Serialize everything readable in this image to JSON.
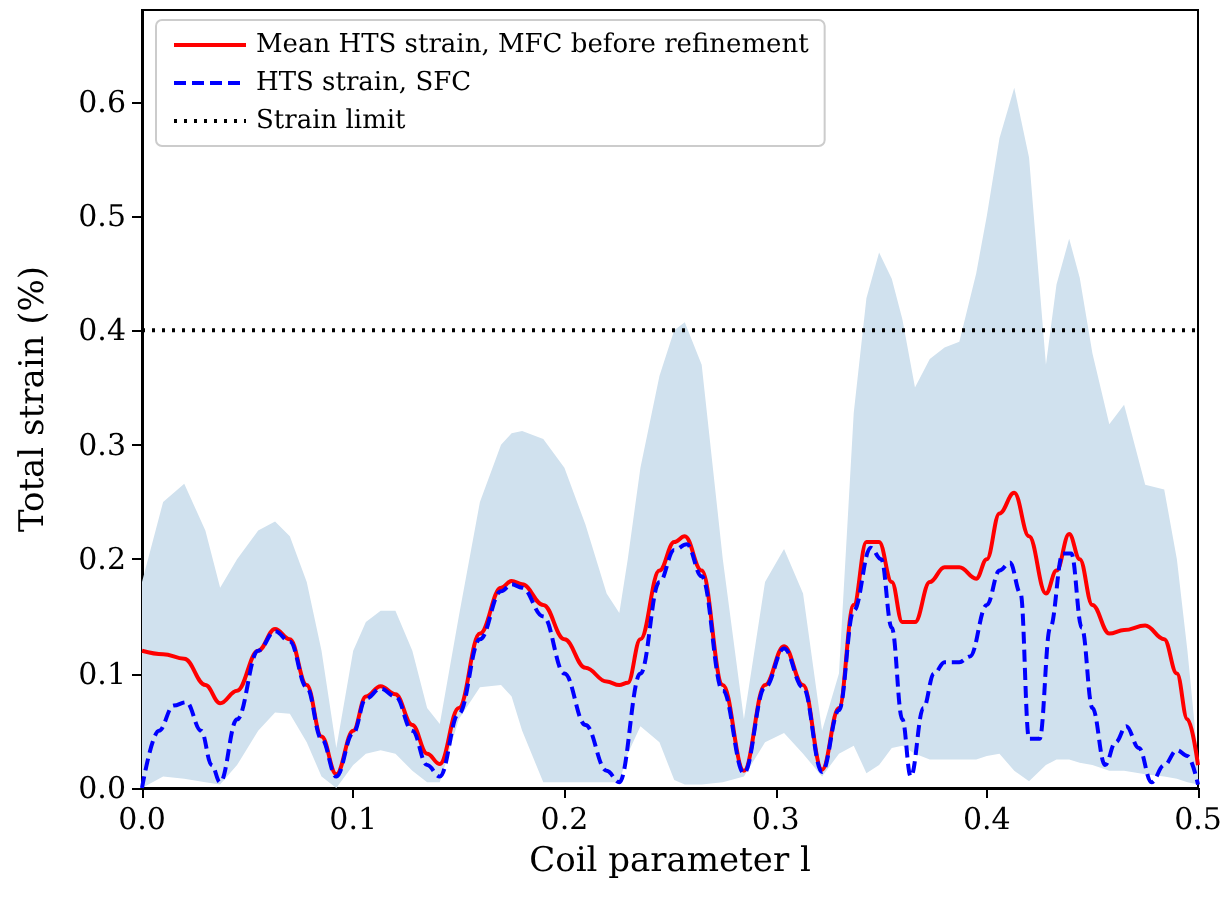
{
  "chart_data": {
    "type": "line",
    "xlabel": "Coil parameter l",
    "ylabel": "Total strain (%)",
    "xlim": [
      0,
      0.5
    ],
    "ylim": [
      0,
      0.68
    ],
    "xticks": [
      {
        "value": 0,
        "label": "0.0"
      },
      {
        "value": 0.1,
        "label": "0.1"
      },
      {
        "value": 0.2,
        "label": "0.2"
      },
      {
        "value": 0.3,
        "label": "0.3"
      },
      {
        "value": 0.4,
        "label": "0.4"
      },
      {
        "value": 0.5,
        "label": "0.5"
      }
    ],
    "yticks": [
      {
        "value": 0,
        "label": "0.0"
      },
      {
        "value": 0.1,
        "label": "0.1"
      },
      {
        "value": 0.2,
        "label": "0.2"
      },
      {
        "value": 0.3,
        "label": "0.3"
      },
      {
        "value": 0.4,
        "label": "0.4"
      },
      {
        "value": 0.5,
        "label": "0.5"
      },
      {
        "value": 0.6,
        "label": "0.6"
      }
    ],
    "grid": false,
    "legend": "top left",
    "marker": "none",
    "series": [
      {
        "name": "Mean HTS strain, MFC before refinement",
        "color": "#ff0000",
        "line_style": "solid",
        "x": [
          0,
          0.01,
          0.02,
          0.03,
          0.037,
          0.045,
          0.055,
          0.063,
          0.07,
          0.078,
          0.085,
          0.092,
          0.1,
          0.106,
          0.113,
          0.12,
          0.128,
          0.135,
          0.141,
          0.15,
          0.16,
          0.17,
          0.175,
          0.18,
          0.19,
          0.2,
          0.21,
          0.22,
          0.226,
          0.23,
          0.236,
          0.245,
          0.252,
          0.257,
          0.265,
          0.275,
          0.285,
          0.295,
          0.304,
          0.313,
          0.322,
          0.33,
          0.337,
          0.343,
          0.349,
          0.355,
          0.36,
          0.366,
          0.373,
          0.38,
          0.387,
          0.395,
          0.4,
          0.406,
          0.413,
          0.42,
          0.428,
          0.433,
          0.439,
          0.444,
          0.45,
          0.458,
          0.465,
          0.475,
          0.484,
          0.49,
          0.495,
          0.5
        ],
        "values": [
          0.12,
          0.117,
          0.113,
          0.09,
          0.074,
          0.085,
          0.12,
          0.139,
          0.13,
          0.09,
          0.045,
          0.012,
          0.05,
          0.08,
          0.089,
          0.082,
          0.055,
          0.03,
          0.021,
          0.07,
          0.135,
          0.175,
          0.181,
          0.178,
          0.16,
          0.13,
          0.105,
          0.093,
          0.09,
          0.092,
          0.13,
          0.19,
          0.215,
          0.22,
          0.19,
          0.09,
          0.015,
          0.09,
          0.124,
          0.09,
          0.016,
          0.07,
          0.16,
          0.215,
          0.215,
          0.18,
          0.145,
          0.145,
          0.18,
          0.193,
          0.193,
          0.183,
          0.2,
          0.24,
          0.258,
          0.22,
          0.17,
          0.19,
          0.222,
          0.2,
          0.16,
          0.135,
          0.138,
          0.142,
          0.13,
          0.1,
          0.06,
          0.02
        ],
        "lower": [
          0,
          0.01,
          0.008,
          0.005,
          0.003,
          0.02,
          0.05,
          0.066,
          0.065,
          0.04,
          0.01,
          0,
          0.02,
          0.03,
          0.033,
          0.03,
          0.015,
          0.005,
          0.005,
          0.06,
          0.088,
          0.09,
          0.08,
          0.05,
          0.005,
          0.005,
          0.005,
          0.005,
          0.005,
          0.03,
          0.054,
          0.04,
          0.007,
          0.003,
          0.003,
          0.005,
          0.01,
          0.04,
          0.048,
          0.03,
          0.01,
          0.03,
          0.037,
          0.013,
          0.02,
          0.035,
          0.037,
          0.03,
          0.025,
          0.025,
          0.025,
          0.025,
          0.028,
          0.03,
          0.015,
          0.006,
          0.02,
          0.025,
          0.025,
          0.022,
          0.02,
          0.015,
          0.015,
          0.012,
          0.01,
          0.008,
          0.005,
          0.003
        ],
        "upper": [
          0.18,
          0.25,
          0.266,
          0.225,
          0.175,
          0.2,
          0.225,
          0.233,
          0.22,
          0.18,
          0.12,
          0.035,
          0.12,
          0.145,
          0.155,
          0.155,
          0.12,
          0.07,
          0.056,
          0.15,
          0.25,
          0.3,
          0.31,
          0.312,
          0.305,
          0.28,
          0.23,
          0.17,
          0.153,
          0.2,
          0.28,
          0.36,
          0.4,
          0.407,
          0.37,
          0.2,
          0.06,
          0.18,
          0.209,
          0.17,
          0.05,
          0.1,
          0.328,
          0.428,
          0.468,
          0.445,
          0.41,
          0.35,
          0.375,
          0.385,
          0.39,
          0.45,
          0.5,
          0.568,
          0.612,
          0.551,
          0.37,
          0.44,
          0.48,
          0.446,
          0.38,
          0.318,
          0.335,
          0.265,
          0.261,
          0.2,
          0.12,
          0.025
        ]
      },
      {
        "name": "HTS strain, SFC",
        "color": "#0000ff",
        "line_style": "dashed",
        "x": [
          0,
          0.008,
          0.015,
          0.021,
          0.028,
          0.033,
          0.037,
          0.045,
          0.055,
          0.063,
          0.07,
          0.078,
          0.085,
          0.092,
          0.1,
          0.106,
          0.113,
          0.12,
          0.128,
          0.135,
          0.141,
          0.15,
          0.16,
          0.17,
          0.175,
          0.18,
          0.19,
          0.2,
          0.21,
          0.22,
          0.226,
          0.236,
          0.245,
          0.252,
          0.258,
          0.265,
          0.275,
          0.285,
          0.295,
          0.304,
          0.313,
          0.322,
          0.33,
          0.337,
          0.345,
          0.35,
          0.355,
          0.36,
          0.364,
          0.37,
          0.375,
          0.38,
          0.387,
          0.392,
          0.4,
          0.406,
          0.411,
          0.416,
          0.42,
          0.425,
          0.43,
          0.436,
          0.44,
          0.445,
          0.45,
          0.456,
          0.461,
          0.466,
          0.472,
          0.478,
          0.484,
          0.49,
          0.495,
          0.5
        ],
        "values": [
          0,
          0.05,
          0.072,
          0.075,
          0.05,
          0.02,
          0.005,
          0.06,
          0.12,
          0.137,
          0.128,
          0.088,
          0.043,
          0.01,
          0.048,
          0.078,
          0.087,
          0.08,
          0.05,
          0.02,
          0.01,
          0.065,
          0.13,
          0.172,
          0.178,
          0.175,
          0.15,
          0.1,
          0.055,
          0.015,
          0.005,
          0.1,
          0.18,
          0.208,
          0.213,
          0.185,
          0.085,
          0.013,
          0.088,
          0.122,
          0.088,
          0.014,
          0.068,
          0.155,
          0.21,
          0.2,
          0.14,
          0.06,
          0.01,
          0.07,
          0.1,
          0.11,
          0.11,
          0.115,
          0.16,
          0.19,
          0.197,
          0.17,
          0.043,
          0.043,
          0.14,
          0.205,
          0.205,
          0.14,
          0.07,
          0.02,
          0.04,
          0.054,
          0.035,
          0.005,
          0.02,
          0.033,
          0.028,
          0.003
        ]
      }
    ],
    "ref_lines": [
      {
        "axis": "y",
        "value": 0.4,
        "label": "Strain limit",
        "color": "#000000",
        "line_style": "dotted"
      }
    ]
  }
}
